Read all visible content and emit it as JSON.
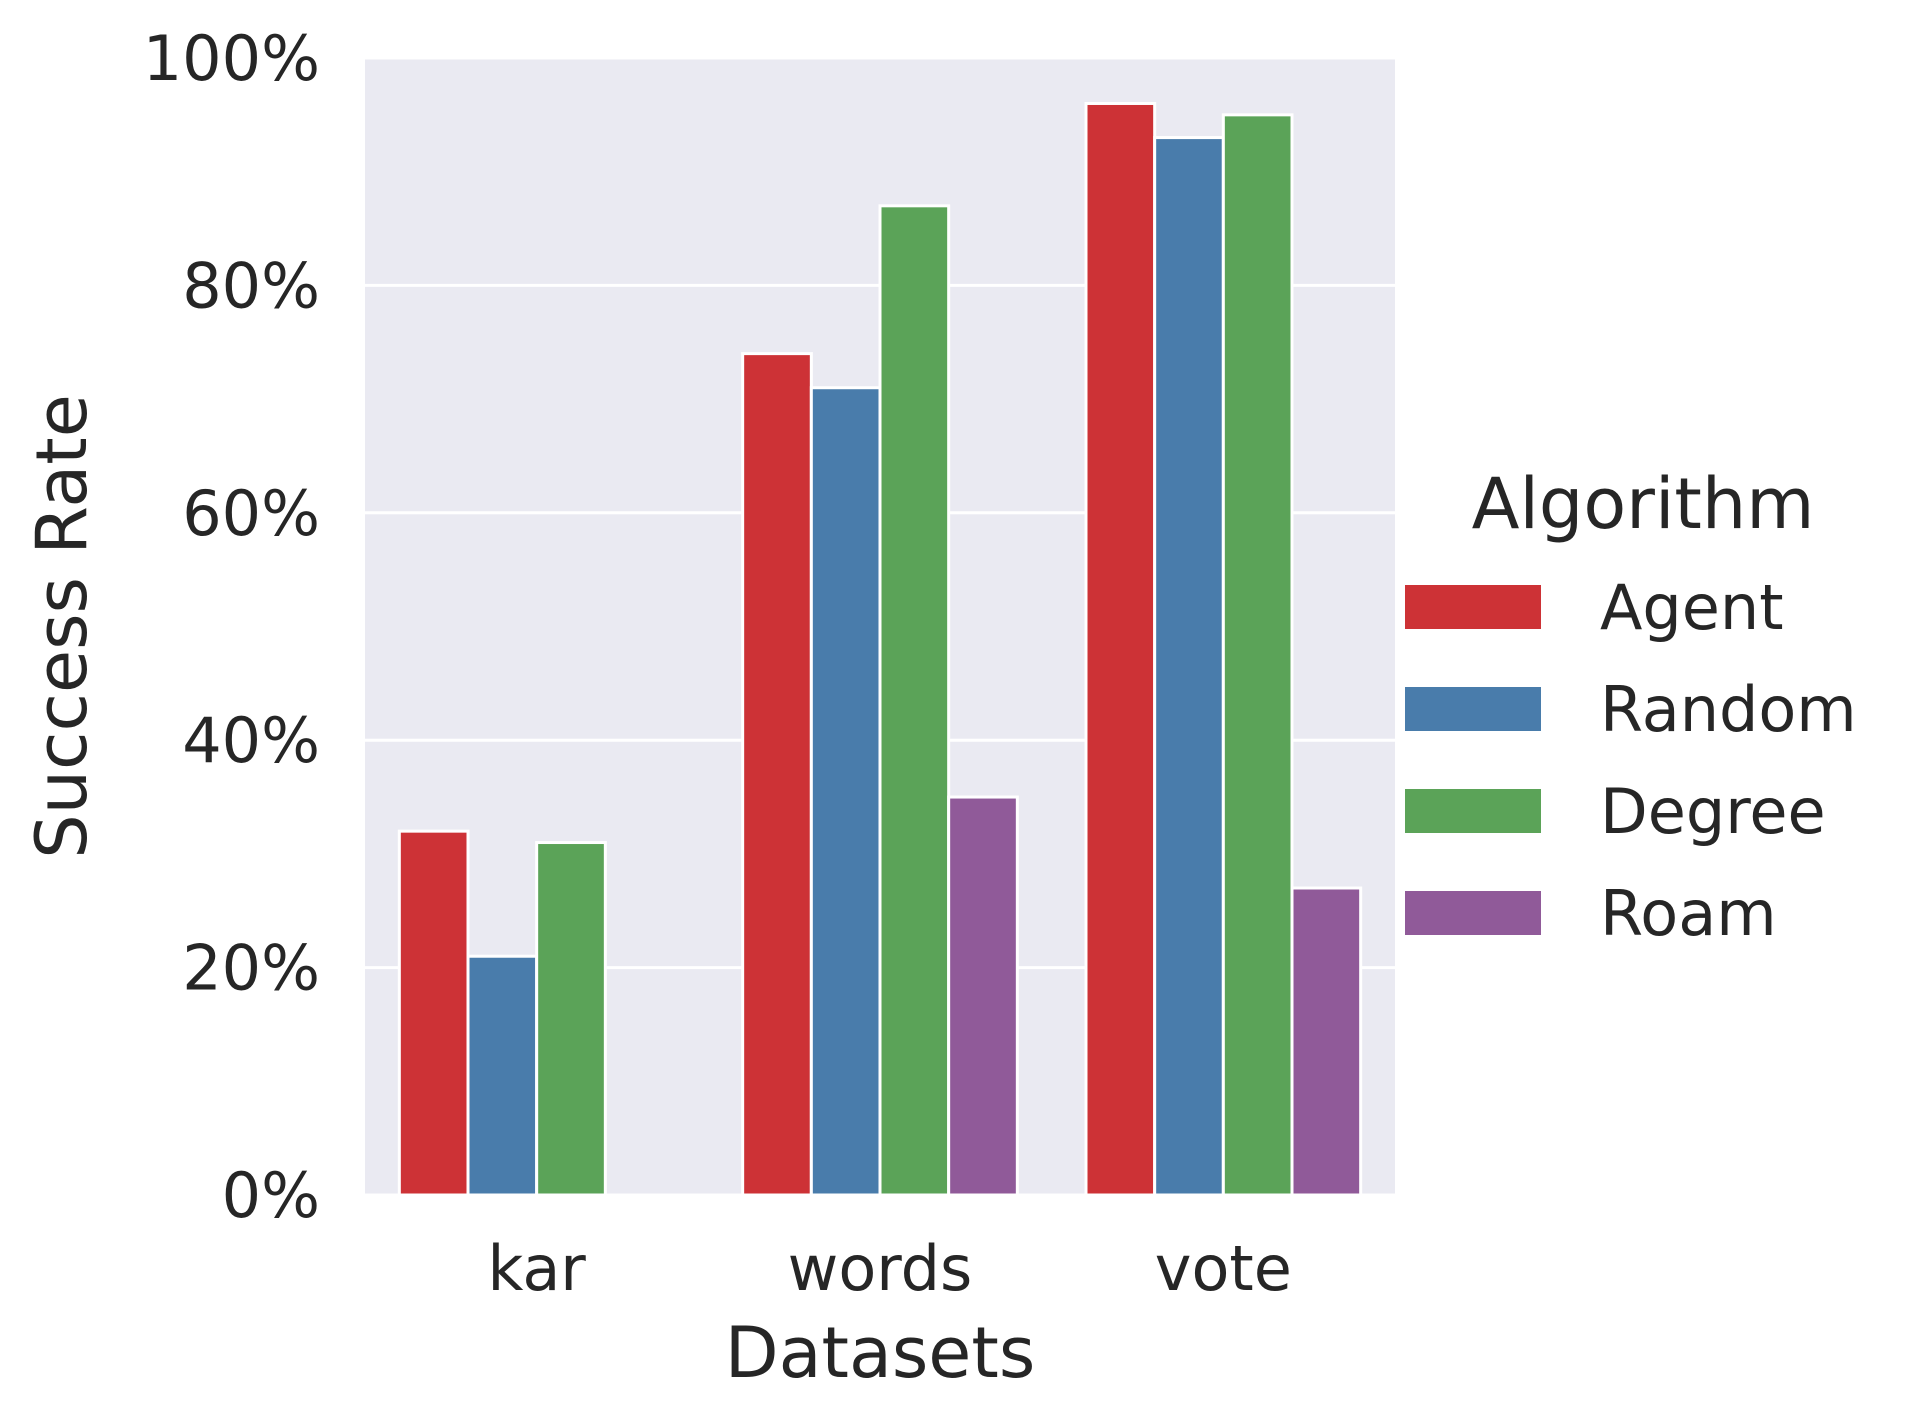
{
  "chart_data": {
    "type": "bar",
    "categories": [
      "kar",
      "words",
      "vote"
    ],
    "series": [
      {
        "name": "Agent",
        "values": [
          32,
          74,
          96
        ]
      },
      {
        "name": "Random",
        "values": [
          21,
          71,
          93
        ]
      },
      {
        "name": "Degree",
        "values": [
          31,
          87,
          95
        ]
      },
      {
        "name": "Roam",
        "values": [
          null,
          35,
          27
        ]
      }
    ],
    "xlabel": "Datasets",
    "ylabel": "Success Rate",
    "ylim": [
      0,
      100
    ],
    "yticks": [
      "0%",
      "20%",
      "40%",
      "60%",
      "80%",
      "100%"
    ],
    "ytick_values": [
      0,
      20,
      40,
      60,
      80,
      100
    ],
    "grid": true,
    "legend": {
      "title": "Algorithm",
      "placement": "right"
    },
    "colors": {
      "Agent": "#cd3236",
      "Random": "#497cab",
      "Degree": "#5ba358",
      "Roam": "#905a99",
      "plot_background": "#eaeaf2",
      "grid": "#ffffff"
    }
  }
}
